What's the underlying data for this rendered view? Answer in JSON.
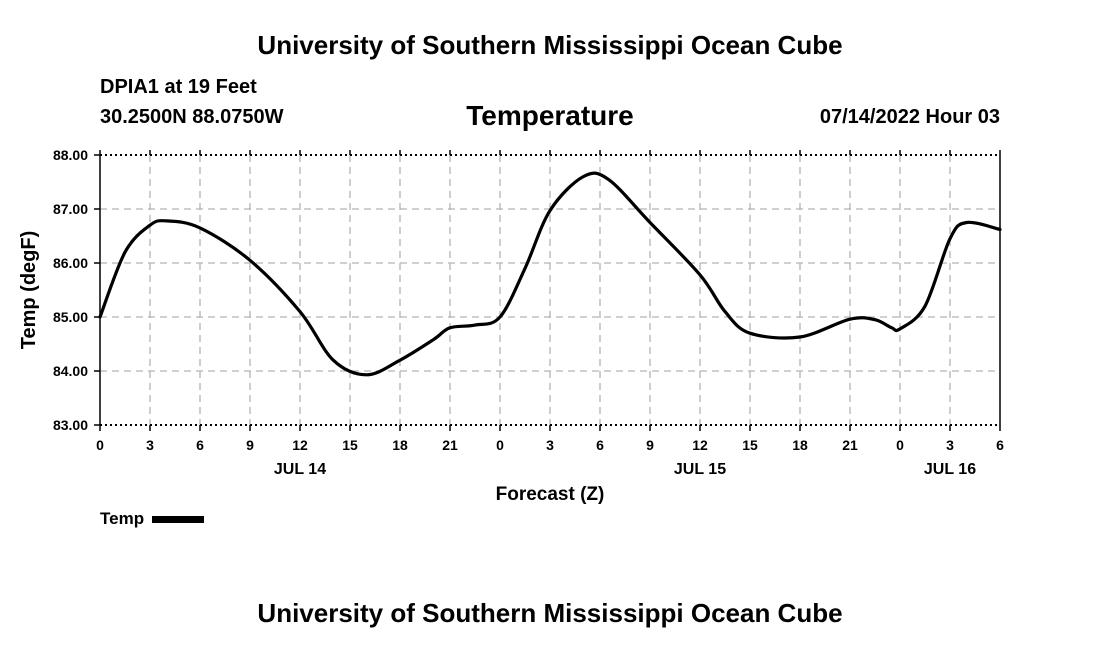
{
  "header": {
    "title": "University of Southern Mississippi Ocean Cube",
    "station": "DPIA1 at 19 Feet",
    "coords": "30.2500N  88.0750W",
    "variable": "Temperature",
    "datetime": "07/14/2022 Hour 03"
  },
  "footer": {
    "title": "University of Southern Mississippi Ocean Cube"
  },
  "legend": {
    "label": "Temp"
  },
  "colors": {
    "line": "#000000",
    "grid": "#b4b4b4"
  },
  "chart_data": {
    "type": "line",
    "title": "Temperature",
    "xlabel": "Forecast (Z)",
    "ylabel": "Temp (degF)",
    "ylim": [
      83.0,
      88.0
    ],
    "xlim": [
      0,
      54
    ],
    "x_unit": "hours from 07/14 00Z",
    "grid": true,
    "legend_position": "bottom-left",
    "yticks": [
      "83.00",
      "84.00",
      "85.00",
      "86.00",
      "87.00",
      "88.00"
    ],
    "xtick_labels": [
      "0",
      "3",
      "6",
      "9",
      "12",
      "15",
      "18",
      "21",
      "0",
      "3",
      "6",
      "9",
      "12",
      "15",
      "18",
      "21",
      "0",
      "3",
      "6"
    ],
    "day_labels": [
      {
        "label": "JUL 14",
        "x": 12
      },
      {
        "label": "JUL 15",
        "x": 36
      },
      {
        "label": "JUL 16",
        "x": 51
      }
    ],
    "series": [
      {
        "name": "Temp",
        "x": [
          0,
          1.5,
          3,
          4,
          6,
          9,
          12,
          14,
          16,
          18,
          20,
          21,
          22.5,
          24,
          25.5,
          27,
          29,
          30.5,
          33,
          36,
          37.5,
          39,
          42,
          45,
          46.5,
          47.5,
          48,
          49.5,
          51,
          52,
          54
        ],
        "values": [
          85.0,
          86.2,
          86.7,
          86.78,
          86.65,
          86.05,
          85.1,
          84.2,
          83.93,
          84.2,
          84.58,
          84.8,
          84.85,
          85.0,
          85.9,
          86.97,
          87.6,
          87.55,
          86.75,
          85.78,
          85.1,
          84.7,
          84.63,
          84.96,
          84.95,
          84.8,
          84.78,
          85.2,
          86.45,
          86.75,
          86.62
        ]
      }
    ]
  }
}
